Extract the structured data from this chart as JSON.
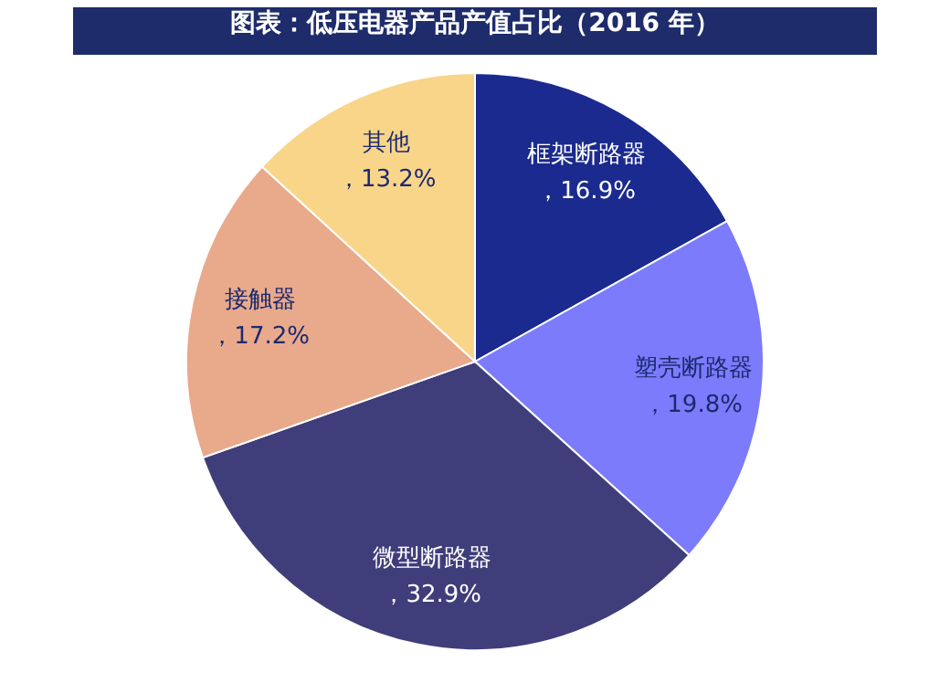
{
  "chart_data": {
    "type": "pie",
    "title": "图表：低压电器产品产值占比（2016 年）",
    "categories": [
      "框架断路器",
      "塑壳断路器",
      "微型断路器",
      "接触器",
      "其他"
    ],
    "values": [
      16.9,
      19.8,
      32.9,
      17.2,
      13.2
    ],
    "colors": [
      "#1b2a8e",
      "#7b7bfb",
      "#3f3d7a",
      "#e9a98b",
      "#f9d58a"
    ],
    "value_labels": [
      "，16.9%",
      "，19.8%",
      "，32.9%",
      "，17.2%",
      "，13.2%"
    ],
    "legend": false
  }
}
